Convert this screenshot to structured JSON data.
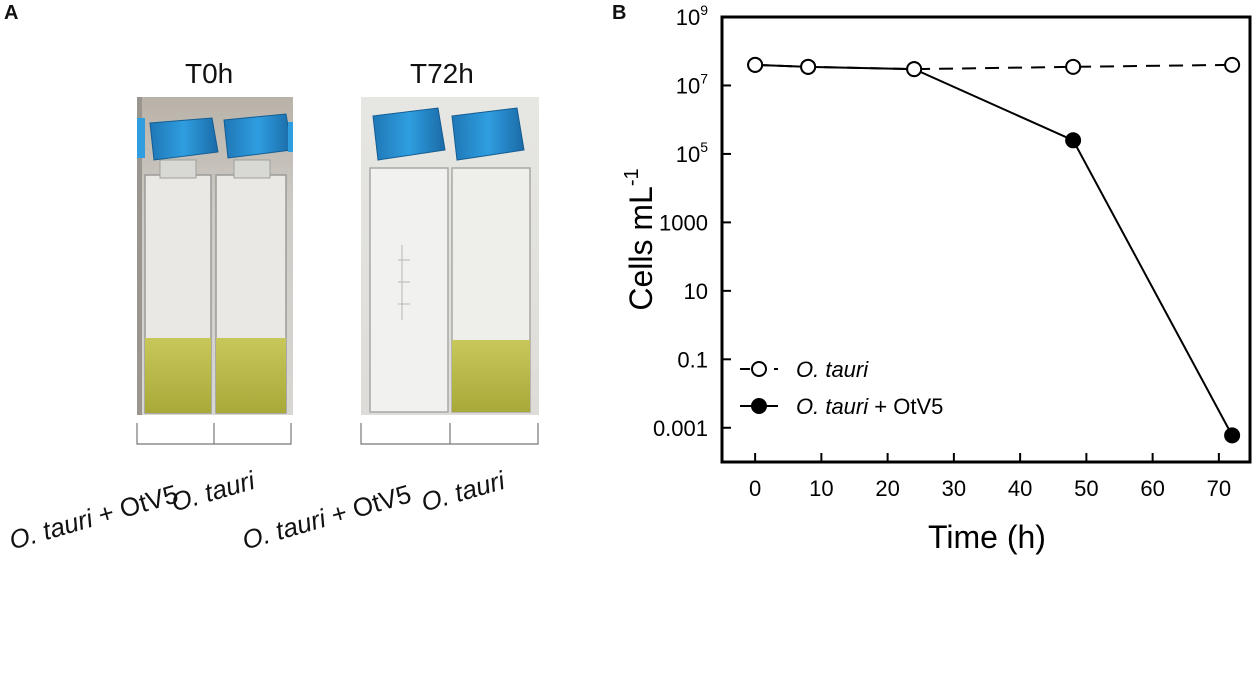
{
  "panel_a": {
    "letter": "A",
    "photos": [
      {
        "title": "T0h",
        "labels": [
          "O. tauri + OtV5",
          "O. tauri"
        ]
      },
      {
        "title": "T72h",
        "labels": [
          "O. tauri + OtV5",
          "O. tauri"
        ]
      }
    ],
    "species": "O. tauri",
    "virus_suffix": " + OtV5"
  },
  "panel_b": {
    "letter": "B"
  },
  "chart_data": {
    "type": "line",
    "title": "",
    "xlabel": "Time (h)",
    "ylabel": "Cells mL",
    "ylabel_exponent": "-1",
    "xlim": [
      -5,
      75
    ],
    "ylim": [
      0.0001,
      1000000000
    ],
    "yscale": "log",
    "x_ticks": [
      0,
      10,
      20,
      30,
      40,
      50,
      60,
      70
    ],
    "y_ticks": [
      {
        "value": 1000000000,
        "base": "10",
        "exp": "9"
      },
      {
        "value": 10000000,
        "base": "10",
        "exp": "7"
      },
      {
        "value": 100000,
        "base": "10",
        "exp": "5"
      },
      {
        "value": 1000,
        "base": "1000",
        "exp": ""
      },
      {
        "value": 10,
        "base": "10",
        "exp": ""
      },
      {
        "value": 0.1,
        "base": "0.1",
        "exp": ""
      },
      {
        "value": 0.001,
        "base": "0.001",
        "exp": ""
      }
    ],
    "grid": false,
    "legend_position": "bottom-left",
    "series": [
      {
        "name": "O. tauri",
        "name_suffix": "",
        "marker": "open-circle",
        "line": "dashed",
        "x": [
          0,
          8,
          24,
          48,
          72
        ],
        "y": [
          40000000,
          35000000,
          30000000,
          35000000,
          40000000
        ]
      },
      {
        "name": "O. tauri",
        "name_suffix": " + OtV5",
        "marker": "filled-circle",
        "line": "solid",
        "x": [
          0,
          8,
          24,
          48,
          72
        ],
        "y": [
          40000000,
          35000000,
          30000000,
          250000,
          0.0006
        ]
      }
    ]
  }
}
